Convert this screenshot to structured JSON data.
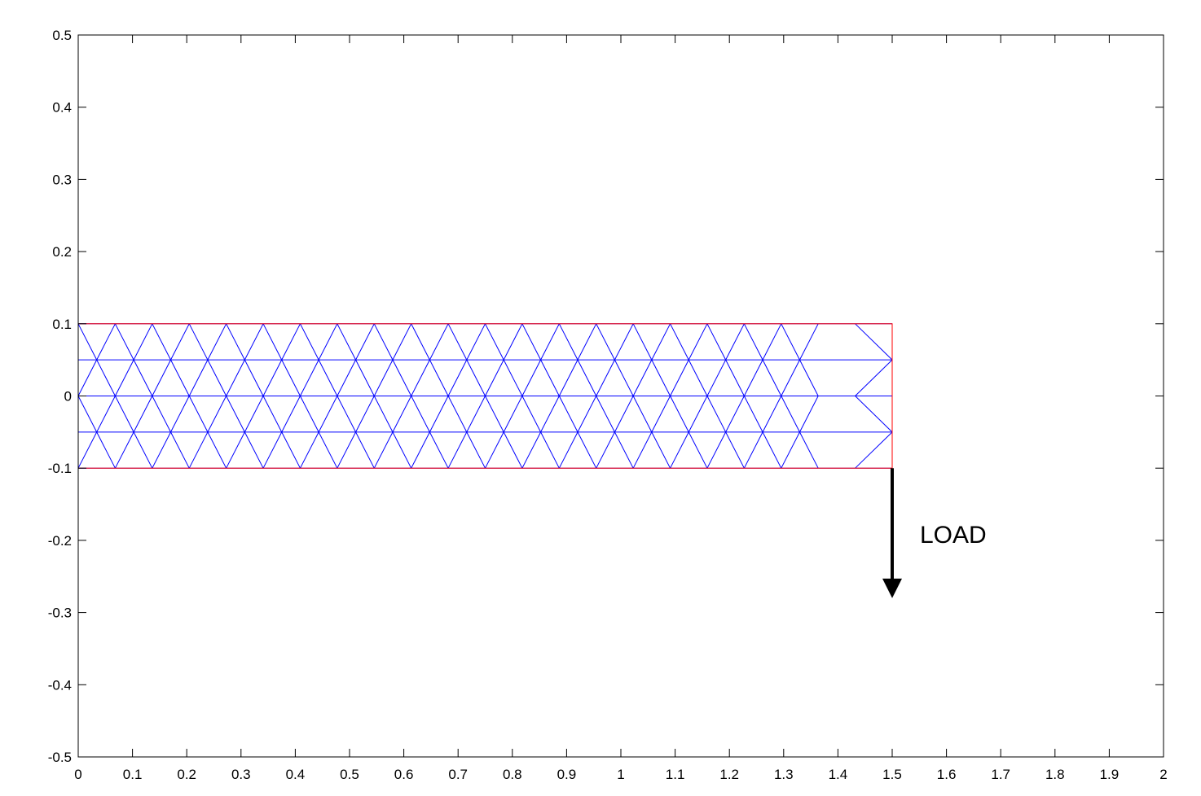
{
  "chart_data": {
    "type": "mesh",
    "xlim": [
      0,
      2
    ],
    "ylim": [
      -0.5,
      0.5
    ],
    "x_ticks": [
      "0",
      "0.1",
      "0.2",
      "0.3",
      "0.4",
      "0.5",
      "0.6",
      "0.7",
      "0.8",
      "0.9",
      "1",
      "1.1",
      "1.2",
      "1.3",
      "1.4",
      "1.5",
      "1.6",
      "1.7",
      "1.8",
      "1.9",
      "2"
    ],
    "y_ticks": [
      "0.5",
      "0.4",
      "0.3",
      "0.2",
      "0.1",
      "0",
      "-0.1",
      "-0.2",
      "-0.3",
      "-0.4",
      "-0.5"
    ],
    "x_tick_values": [
      0,
      0.1,
      0.2,
      0.3,
      0.4,
      0.5,
      0.6,
      0.7,
      0.8,
      0.9,
      1,
      1.1,
      1.2,
      1.3,
      1.4,
      1.5,
      1.6,
      1.7,
      1.8,
      1.9,
      2
    ],
    "y_tick_values": [
      0.5,
      0.4,
      0.3,
      0.2,
      0.1,
      0,
      -0.1,
      -0.2,
      -0.3,
      -0.4,
      -0.5
    ],
    "domain": {
      "x": [
        0,
        1.5
      ],
      "y": [
        -0.1,
        0.1
      ]
    },
    "mesh_rows_y": [
      0.1,
      0.05,
      0,
      -0.05,
      -0.1
    ],
    "mesh_nodes_per_row": [
      23,
      22,
      23,
      22,
      23
    ],
    "load": {
      "label": "LOAD",
      "x": 1.5,
      "y_start": -0.1,
      "y_end": -0.28
    },
    "colors": {
      "mesh": "#0000ff",
      "boundary": "#ff0000",
      "axes": "#000000",
      "load": "#000000"
    }
  }
}
